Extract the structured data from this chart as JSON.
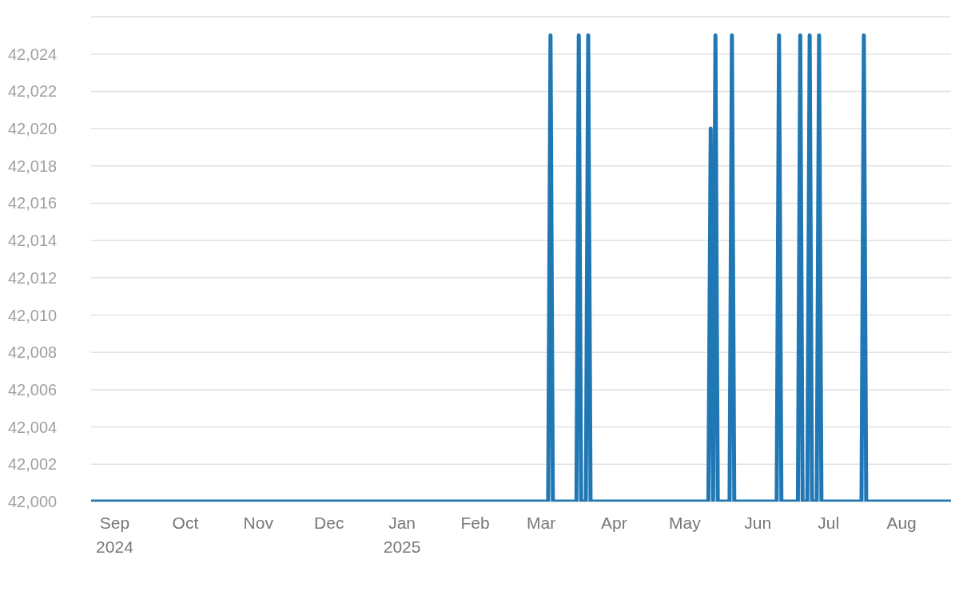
{
  "chart_data": {
    "type": "line",
    "x": [
      "2024-08-22",
      "2025-03-04",
      "2025-03-05",
      "2025-03-06",
      "2025-03-16",
      "2025-03-17",
      "2025-03-18",
      "2025-03-20",
      "2025-03-21",
      "2025-03-22",
      "2025-05-11",
      "2025-05-12",
      "2025-05-13",
      "2025-05-14",
      "2025-05-15",
      "2025-05-20",
      "2025-05-21",
      "2025-05-22",
      "2025-06-09",
      "2025-06-10",
      "2025-06-11",
      "2025-06-18",
      "2025-06-19",
      "2025-06-20",
      "2025-06-22",
      "2025-06-23",
      "2025-06-24",
      "2025-06-26",
      "2025-06-27",
      "2025-06-28",
      "2025-07-15",
      "2025-07-16",
      "2025-07-17",
      "2025-08-22"
    ],
    "series": [
      {
        "color": "#1f77b4",
        "values": [
          42000,
          42000,
          42025,
          42000,
          42000,
          42025,
          42000,
          42000,
          42025,
          42000,
          42000,
          42020,
          42000,
          42025,
          42000,
          42000,
          42025,
          42000,
          42000,
          42025,
          42000,
          42000,
          42025,
          42000,
          42000,
          42025,
          42000,
          42000,
          42025,
          42000,
          42000,
          42025,
          42000,
          42000
        ]
      }
    ],
    "xlim": [
      "2024-08-22",
      "2025-08-22"
    ],
    "xticks": [
      {
        "value": "2024-09-01",
        "label": "Sep\n2024"
      },
      {
        "value": "2024-10-01",
        "label": "Oct"
      },
      {
        "value": "2024-11-01",
        "label": "Nov"
      },
      {
        "value": "2024-12-01",
        "label": "Dec"
      },
      {
        "value": "2025-01-01",
        "label": "Jan\n2025"
      },
      {
        "value": "2025-02-01",
        "label": "Feb"
      },
      {
        "value": "2025-03-01",
        "label": "Mar"
      },
      {
        "value": "2025-04-01",
        "label": "Apr"
      },
      {
        "value": "2025-05-01",
        "label": "May"
      },
      {
        "value": "2025-06-01",
        "label": "Jun"
      },
      {
        "value": "2025-07-01",
        "label": "Jul"
      },
      {
        "value": "2025-08-01",
        "label": "Aug"
      }
    ],
    "ylim": [
      42000,
      42026
    ],
    "yticks": [
      {
        "value": 42000,
        "label": "42,000"
      },
      {
        "value": 42002,
        "label": "42,002"
      },
      {
        "value": 42004,
        "label": "42,004"
      },
      {
        "value": 42006,
        "label": "42,006"
      },
      {
        "value": 42008,
        "label": "42,008"
      },
      {
        "value": 42010,
        "label": "42,010"
      },
      {
        "value": 42012,
        "label": "42,012"
      },
      {
        "value": 42014,
        "label": "42,014"
      },
      {
        "value": 42016,
        "label": "42,016"
      },
      {
        "value": 42018,
        "label": "42,018"
      },
      {
        "value": 42020,
        "label": "42,020"
      },
      {
        "value": 42022,
        "label": "42,022"
      },
      {
        "value": 42024,
        "label": "42,024"
      }
    ],
    "grid": "y",
    "legend": false,
    "line_style": "solid",
    "marker": "none"
  }
}
